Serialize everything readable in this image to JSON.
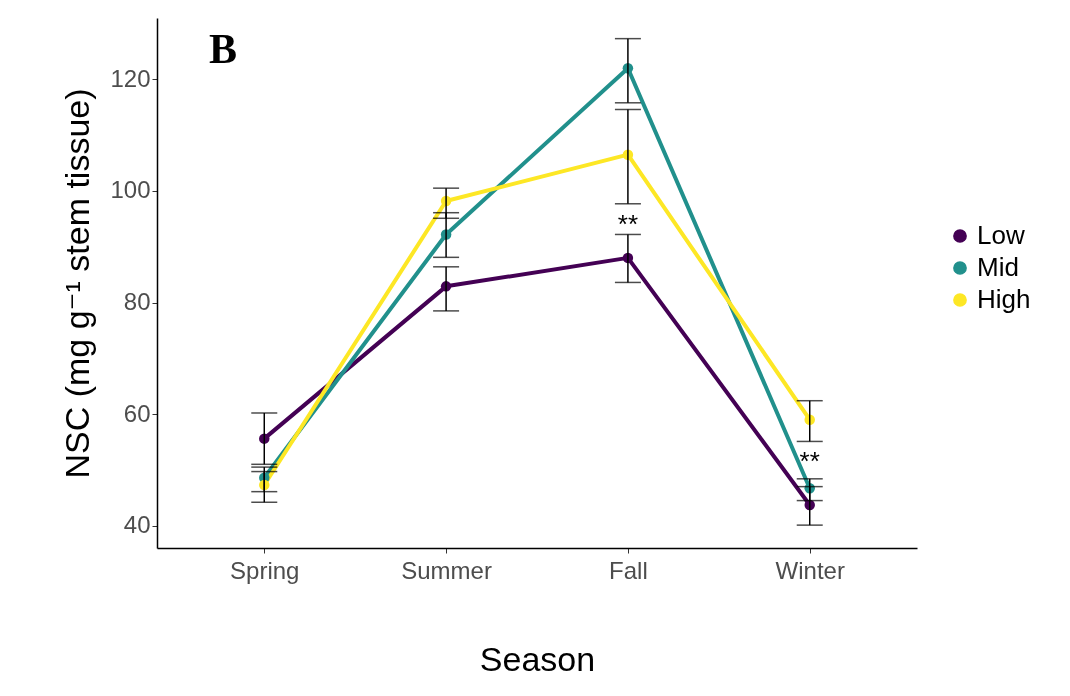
{
  "chart_data": {
    "type": "line",
    "xlabel": "Season",
    "ylabel": "NSC (mg g⁻¹ stem tissue)",
    "categories": [
      "Spring",
      "Summer",
      "Fall",
      "Winter"
    ],
    "series": [
      {
        "name": "Low",
        "color": "#440154",
        "values": [
          55.6,
          82.9,
          88.0,
          43.7
        ],
        "errors": [
          [
            51.0,
            60.2
          ],
          [
            78.5,
            86.4
          ],
          [
            83.6,
            92.2
          ],
          [
            40.1,
            47.0
          ]
        ]
      },
      {
        "name": "Mid",
        "color": "#21908c",
        "values": [
          48.6,
          92.2,
          122.0,
          46.7
        ],
        "errors": [
          [
            46.1,
            49.7
          ],
          [
            88.1,
            96.1
          ],
          [
            115.8,
            127.3
          ],
          [
            44.5,
            48.4
          ]
        ]
      },
      {
        "name": "High",
        "color": "#fde725",
        "values": [
          47.3,
          98.2,
          106.5,
          59.0
        ],
        "errors": [
          [
            44.2,
            50.5
          ],
          [
            95.1,
            100.5
          ],
          [
            97.7,
            114.6
          ],
          [
            55.1,
            62.4
          ]
        ]
      }
    ],
    "ylim": [
      36,
      131
    ],
    "yticks": [
      40,
      60,
      80,
      100,
      120
    ],
    "legend": "right",
    "grid": false,
    "marker": "circle",
    "line_style": "solid",
    "annotations": [
      "B",
      {
        "text": "**",
        "x": "Fall",
        "y": 97.7
      },
      {
        "text": "**",
        "x": "Winter",
        "y": 55.1
      }
    ]
  }
}
